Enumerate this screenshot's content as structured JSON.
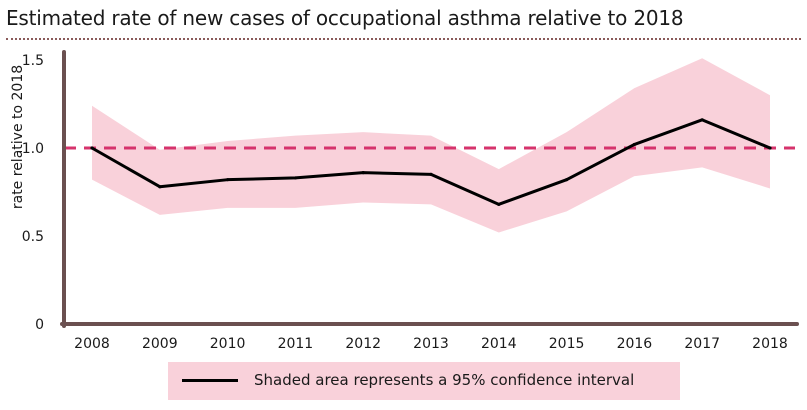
{
  "title": "Estimated rate of new cases of occupational asthma relative to 2018",
  "legend": {
    "label": "Shaded area represents a 95% confidence interval"
  },
  "colors": {
    "band": "#f9d1da",
    "line": "#000000",
    "reference": "#d6336c",
    "axis": "#6b5050"
  },
  "chart_data": {
    "type": "line",
    "title": "Estimated rate of new cases of occupational asthma relative to 2018",
    "ylabel": "rate relative to 2018",
    "xlabel": "",
    "ylim": [
      0,
      1.5
    ],
    "yticks": [
      0,
      0.5,
      1.0,
      1.5
    ],
    "ytick_labels": [
      "0",
      "0.5",
      "1.0",
      "1.5"
    ],
    "categories": [
      "2008",
      "2009",
      "2010",
      "2011",
      "2012",
      "2013",
      "2014",
      "2015",
      "2016",
      "2017",
      "2018"
    ],
    "series": [
      {
        "name": "",
        "values": [
          1.0,
          0.78,
          0.82,
          0.83,
          0.86,
          0.85,
          0.68,
          0.82,
          1.02,
          1.16,
          1.0
        ]
      }
    ],
    "confidence_interval": {
      "lower": [
        0.82,
        0.62,
        0.66,
        0.66,
        0.69,
        0.68,
        0.52,
        0.64,
        0.84,
        0.89,
        0.77
      ],
      "upper": [
        1.24,
        0.99,
        1.04,
        1.07,
        1.09,
        1.07,
        0.88,
        1.09,
        1.34,
        1.51,
        1.3
      ]
    },
    "reference_line": 1.0,
    "grid": false,
    "legend_position": "bottom"
  }
}
